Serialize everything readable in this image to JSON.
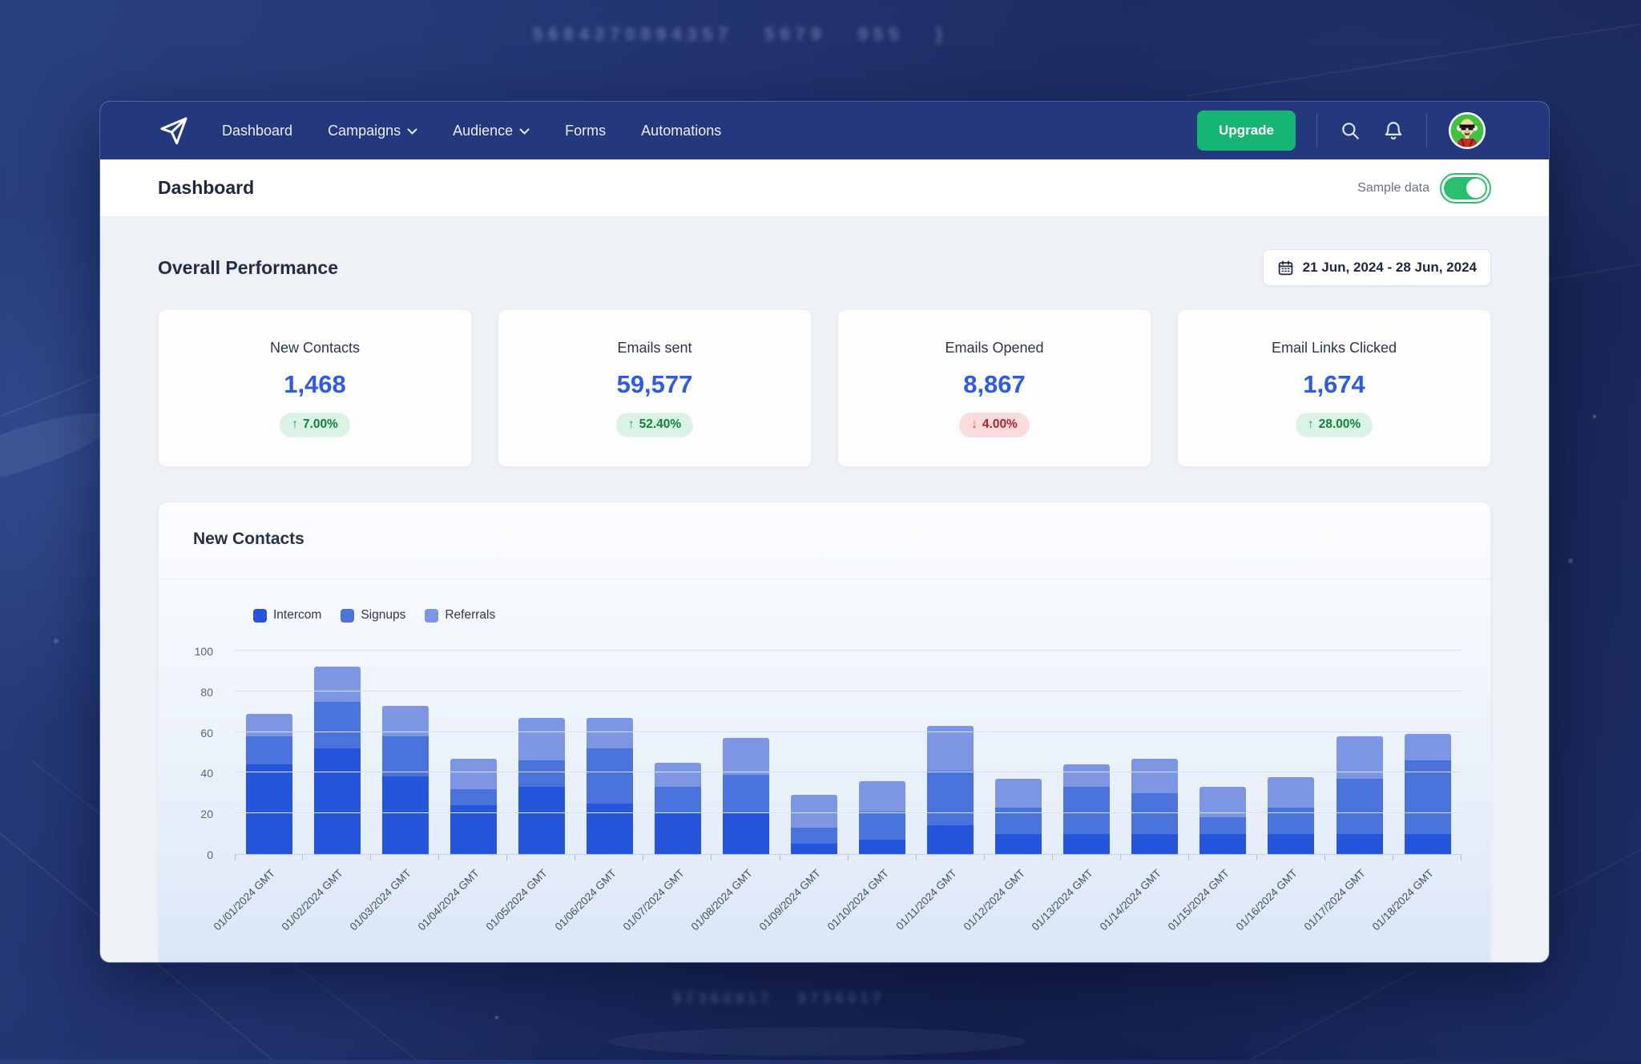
{
  "background": {
    "digits_top": "5684370894357   5679   955   }",
    "digits_bottom": "97360917   9736017"
  },
  "navbar": {
    "items": [
      {
        "label": "Dashboard",
        "dropdown": false
      },
      {
        "label": "Campaigns",
        "dropdown": true
      },
      {
        "label": "Audience",
        "dropdown": true
      },
      {
        "label": "Forms",
        "dropdown": false
      },
      {
        "label": "Automations",
        "dropdown": false
      }
    ],
    "upgrade_label": "Upgrade"
  },
  "header": {
    "title": "Dashboard",
    "sample_data_label": "Sample data",
    "sample_data_on": true
  },
  "overview": {
    "title": "Overall Performance",
    "date_range": "21 Jun, 2024 - 28 Jun, 2024",
    "cards": [
      {
        "title": "New Contacts",
        "value": "1,468",
        "delta": "7.00%",
        "direction": "up",
        "arrow": "↑"
      },
      {
        "title": "Emails sent",
        "value": "59,577",
        "delta": "52.40%",
        "direction": "up",
        "arrow": "↑"
      },
      {
        "title": "Emails Opened",
        "value": "8,867",
        "delta": "4.00%",
        "direction": "down",
        "arrow": "↓"
      },
      {
        "title": "Email Links Clicked",
        "value": "1,674",
        "delta": "28.00%",
        "direction": "up",
        "arrow": "↑"
      }
    ]
  },
  "chart_card": {
    "title": "New Contacts"
  },
  "chart_data": {
    "type": "bar",
    "stacked": true,
    "title": "New Contacts",
    "categories": [
      "01/01/2024 GMT",
      "01/02/2024 GMT",
      "01/03/2024 GMT",
      "01/04/2024 GMT",
      "01/05/2024 GMT",
      "01/06/2024 GMT",
      "01/07/2024 GMT",
      "01/08/2024 GMT",
      "01/09/2024 GMT",
      "01/10/2024 GMT",
      "01/11/2024 GMT",
      "01/12/2024 GMT",
      "01/13/2024 GMT",
      "01/14/2024 GMT",
      "01/15/2024 GMT",
      "01/16/2024 GMT",
      "01/17/2024 GMT",
      "01/18/2024 GMT"
    ],
    "series": [
      {
        "name": "Intercom",
        "color": "#2555db",
        "values": [
          44,
          52,
          38,
          24,
          33,
          25,
          20,
          20,
          5,
          7,
          14,
          10,
          10,
          10,
          10,
          10,
          10,
          10
        ]
      },
      {
        "name": "Signups",
        "color": "#4a74dc",
        "values": [
          14,
          23,
          20,
          8,
          13,
          27,
          13,
          19,
          8,
          14,
          27,
          13,
          23,
          20,
          8,
          13,
          27,
          36
        ]
      },
      {
        "name": "Referrals",
        "color": "#7d96e3",
        "values": [
          11,
          17,
          15,
          15,
          21,
          15,
          12,
          18,
          16,
          15,
          22,
          14,
          11,
          17,
          15,
          15,
          21,
          13
        ]
      }
    ],
    "totals": [
      69,
      92,
      73,
      47,
      67,
      67,
      45,
      57,
      29,
      36,
      63,
      37,
      44,
      47,
      33,
      38,
      58,
      59
    ],
    "ylim": [
      0,
      100
    ],
    "yticks": [
      0,
      20,
      40,
      60,
      80,
      100
    ],
    "ylabel": "",
    "xlabel": "",
    "grid": true,
    "legend_position": "top-left"
  },
  "colors": {
    "navbar": "#24387d",
    "brand_green": "#16b573",
    "toggle_green": "#2abf6e",
    "stat_blue": "#2d5be3",
    "positive_text": "#15803d",
    "negative_text": "#b3232f"
  }
}
